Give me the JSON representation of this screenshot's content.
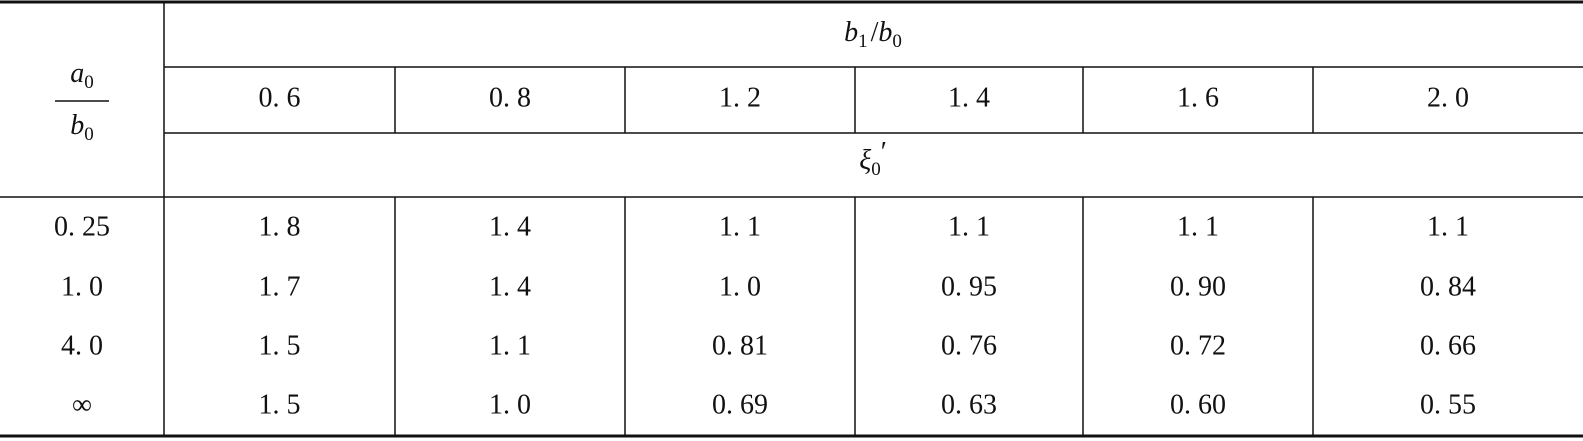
{
  "table": {
    "corner": {
      "numerator": {
        "symbol": "a",
        "subscript": "0"
      },
      "denominator": {
        "symbol": "b",
        "subscript": "0"
      }
    },
    "column_group": {
      "numerator": {
        "symbol": "b",
        "subscript": "1"
      },
      "slash": "/",
      "denominator": {
        "symbol": "b",
        "subscript": "0"
      }
    },
    "columns": [
      "0. 6",
      "0. 8",
      "1. 2",
      "1. 4",
      "1. 6",
      "2. 0"
    ],
    "value_label": {
      "symbol": "ξ",
      "subscript": "0",
      "prime": "′"
    },
    "rows": [
      {
        "label": "0. 25",
        "values": [
          "1. 8",
          "1. 4",
          "1. 1",
          "1. 1",
          "1. 1",
          "1. 1"
        ]
      },
      {
        "label": "1. 0",
        "values": [
          "1. 7",
          "1. 4",
          "1. 0",
          "0. 95",
          "0. 90",
          "0. 84"
        ]
      },
      {
        "label": "4. 0",
        "values": [
          "1. 5",
          "1. 1",
          "0. 81",
          "0. 76",
          "0. 72",
          "0. 66"
        ]
      },
      {
        "label": "∞",
        "values": [
          "1. 5",
          "1. 0",
          "0. 69",
          "0. 63",
          "0. 60",
          "0. 55"
        ]
      }
    ]
  }
}
